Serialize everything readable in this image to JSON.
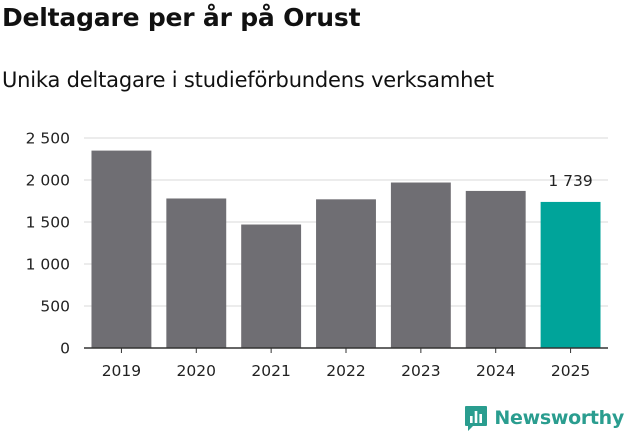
{
  "header": {
    "title": "Deltagare per år på Orust",
    "subtitle": "Unika deltagare i studieförbundens verksamhet"
  },
  "chart_data": {
    "type": "bar",
    "title": "Deltagare per år på Orust",
    "subtitle": "Unika deltagare i studieförbundens verksamhet",
    "xlabel": "",
    "ylabel": "",
    "categories": [
      "2019",
      "2020",
      "2021",
      "2022",
      "2023",
      "2024",
      "2025"
    ],
    "values": [
      2350,
      1780,
      1470,
      1770,
      1970,
      1870,
      1739
    ],
    "highlight_index": 6,
    "highlight_label": "1 739",
    "ylim": [
      0,
      2500
    ],
    "yticks": [
      0,
      500,
      1000,
      1500,
      2000,
      2500
    ],
    "ytick_labels": [
      "0",
      "500",
      "1 000",
      "1 500",
      "2 000",
      "2 500"
    ],
    "grid": true,
    "colors": {
      "bar": "#6f6e73",
      "highlight": "#00a49a",
      "grid": "#d9d9d9",
      "axis": "#333333"
    }
  },
  "brand": {
    "name": "Newsworthy",
    "icon": "newsworthy-logo-icon",
    "color": "#2a9d8f"
  }
}
